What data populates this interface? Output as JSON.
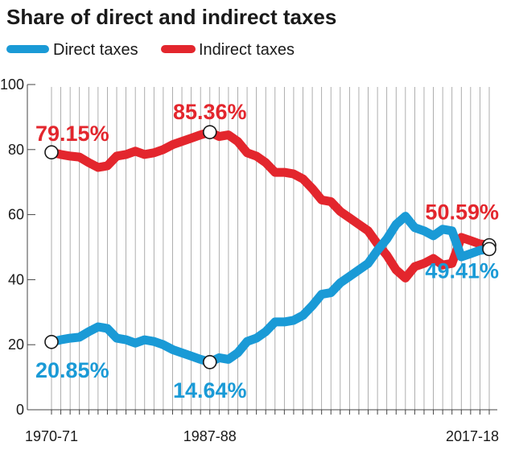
{
  "chart_data": {
    "type": "line",
    "title": "Share of direct and indirect taxes",
    "xlabel": "",
    "ylabel": "",
    "ylim": [
      0,
      100
    ],
    "yticks": [
      0,
      20,
      40,
      60,
      80,
      100
    ],
    "x_tick_labels": [
      "1970-71",
      "1987-88",
      "2017-18"
    ],
    "n_years": 48,
    "legend": "top-left",
    "grid": "vertical",
    "series": [
      {
        "name": "Direct taxes",
        "color": "#1a9ad6",
        "values": [
          20.85,
          21.5,
          22.0,
          22.3,
          24.0,
          25.5,
          25.0,
          22.0,
          21.5,
          20.5,
          21.5,
          21.0,
          20.0,
          18.5,
          17.5,
          16.5,
          15.5,
          14.64,
          16.0,
          15.5,
          17.5,
          21.0,
          22.0,
          24.0,
          27.0,
          27.0,
          27.5,
          29.0,
          32.0,
          35.5,
          36.0,
          39.0,
          41.0,
          43.0,
          45.0,
          49.0,
          52.5,
          57.0,
          59.5,
          56.0,
          55.0,
          53.5,
          55.5,
          55.0,
          47.0,
          48.0,
          49.0,
          49.41
        ]
      },
      {
        "name": "Indirect taxes",
        "color": "#e3262d",
        "values": [
          79.15,
          78.5,
          78.0,
          77.7,
          76.0,
          74.5,
          75.0,
          78.0,
          78.5,
          79.5,
          78.5,
          79.0,
          80.0,
          81.5,
          82.5,
          83.5,
          84.5,
          85.36,
          84.0,
          84.5,
          82.5,
          79.0,
          78.0,
          76.0,
          73.0,
          73.0,
          72.5,
          71.0,
          68.0,
          64.5,
          64.0,
          61.0,
          59.0,
          57.0,
          55.0,
          51.0,
          47.5,
          43.0,
          40.5,
          44.0,
          45.0,
          46.5,
          44.5,
          45.0,
          53.0,
          52.0,
          51.0,
          50.59
        ]
      }
    ],
    "annotations": [
      {
        "text": "79.15%",
        "series": "Indirect taxes",
        "index": 0
      },
      {
        "text": "85.36%",
        "series": "Indirect taxes",
        "index": 17
      },
      {
        "text": "50.59%",
        "series": "Indirect taxes",
        "index": 47
      },
      {
        "text": "20.85%",
        "series": "Direct taxes",
        "index": 0
      },
      {
        "text": "14.64%",
        "series": "Direct taxes",
        "index": 17
      },
      {
        "text": "49.41%",
        "series": "Direct taxes",
        "index": 47
      }
    ]
  }
}
